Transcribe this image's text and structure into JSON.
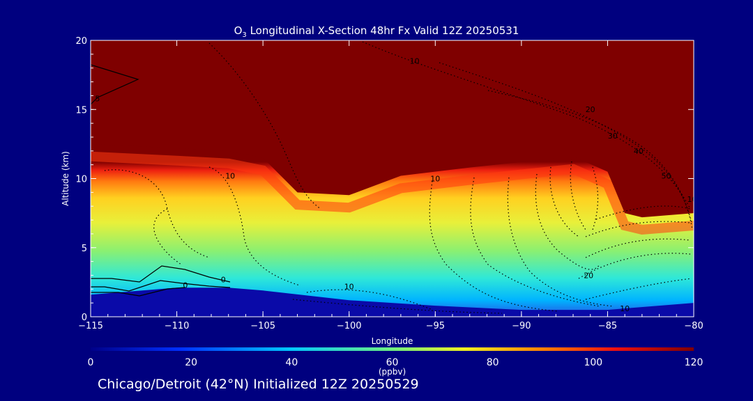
{
  "header": {
    "title_species": "O",
    "title_subscript": "3",
    "title_rest": " Longitudinal X-Section 48hr  Fx Valid 12Z 20250531"
  },
  "footer": {
    "caption": "Chicago/Detroit (42°N) Initialized 12Z 20250529"
  },
  "colors": {
    "background": "#00007f",
    "axes": "#ffffff",
    "contour_lines": "#000000"
  },
  "chart_data": {
    "type": "heatmap",
    "title": "O3 Longitudinal X-Section 48hr  Fx Valid 12Z 20250531",
    "xlabel": "Longitude",
    "ylabel": "Altitude (km)",
    "xlim": [
      -115,
      -80
    ],
    "ylim": [
      0,
      20
    ],
    "x_ticks": [
      -115,
      -110,
      -105,
      -100,
      -95,
      -90,
      -85,
      -80
    ],
    "x_tick_labels": [
      "−115",
      "−110",
      "−105",
      "−100",
      "−95",
      "−90",
      "−85",
      "−80"
    ],
    "y_ticks": [
      0,
      5,
      10,
      15,
      20
    ],
    "y_tick_labels": [
      "0",
      "5",
      "10",
      "15",
      "20"
    ],
    "colorbar": {
      "label": "(ppbv)",
      "range": [
        0,
        120
      ],
      "ticks": [
        0,
        20,
        40,
        60,
        80,
        100,
        120
      ],
      "colormap": "rainbow (dark blue → cyan → yellow → red → dark red)"
    },
    "ozone_boundary_profile": {
      "description": "approximate altitude (km) of the ~120 ppbv (dark red) transition along the section",
      "lon": [
        -115,
        -110,
        -107,
        -105,
        -103,
        -100,
        -97,
        -93,
        -90,
        -87,
        -85,
        -84,
        -83,
        -80
      ],
      "alt": [
        12.5,
        12.2,
        12.0,
        11.5,
        9.0,
        8.8,
        10.2,
        10.8,
        11.2,
        11.6,
        10.5,
        7.5,
        7.2,
        7.5
      ]
    },
    "surface_profile": {
      "description": "approximate terrain height (km) – lowest dark blue region",
      "lon": [
        -115,
        -110,
        -107,
        -105,
        -100,
        -95,
        -90,
        -85,
        -80
      ],
      "alt": [
        1.6,
        2.1,
        2.1,
        1.9,
        1.2,
        0.8,
        0.5,
        0.5,
        1.0
      ]
    },
    "contour_labels": [
      {
        "text": "10",
        "lon": -96.2,
        "alt": 18.3
      },
      {
        "text": "20",
        "lon": -86.0,
        "alt": 14.8
      },
      {
        "text": "30",
        "lon": -84.7,
        "alt": 12.9
      },
      {
        "text": "40",
        "lon": -83.2,
        "alt": 11.8
      },
      {
        "text": "50",
        "lon": -81.6,
        "alt": 10.0
      },
      {
        "text": "10",
        "lon": -80.1,
        "alt": 8.3
      },
      {
        "text": "10",
        "lon": -106.9,
        "alt": 10.0
      },
      {
        "text": "10",
        "lon": -95.0,
        "alt": 9.8
      },
      {
        "text": "20",
        "lon": -86.1,
        "alt": 2.8
      },
      {
        "text": "10",
        "lon": -84.0,
        "alt": 0.4
      },
      {
        "text": "10",
        "lon": -100.0,
        "alt": 2.0
      },
      {
        "text": "0",
        "lon": -107.3,
        "alt": 2.5
      },
      {
        "text": "0",
        "lon": -109.5,
        "alt": 2.1
      },
      {
        "text": "5",
        "lon": -114.6,
        "alt": 15.6
      }
    ]
  }
}
